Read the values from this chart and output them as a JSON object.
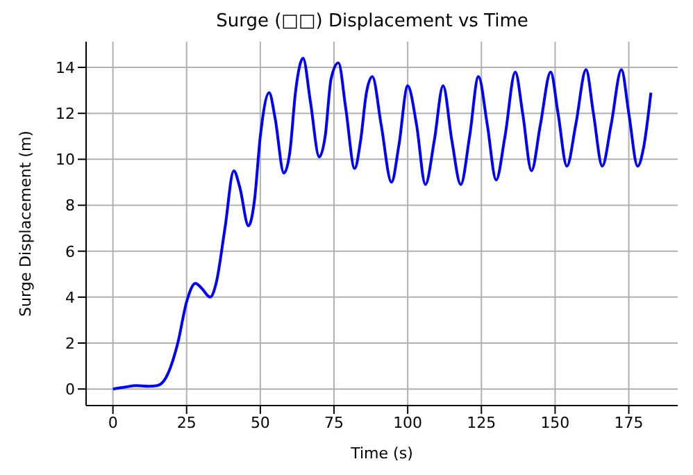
{
  "chart_data": {
    "type": "line",
    "title": "Surge (□□) Displacement vs Time",
    "xlabel": "Time (s)",
    "ylabel": "Surge Displacement (m)",
    "x": [
      0,
      4,
      8,
      12,
      15,
      18,
      22,
      25,
      28,
      30,
      33,
      35,
      38,
      41,
      43,
      46,
      48,
      50,
      53,
      55,
      58,
      60,
      62,
      64.5,
      67,
      70,
      72,
      74,
      76.5,
      79,
      82,
      84,
      86,
      88,
      91,
      94.5,
      97,
      100,
      103,
      106,
      109,
      112,
      115,
      118,
      121,
      124,
      127,
      130,
      133,
      136.5,
      139,
      142,
      145,
      148.5,
      151,
      154,
      157,
      160.5,
      163,
      166,
      169,
      172.5,
      175,
      178,
      180,
      182.5
    ],
    "series": [
      {
        "color": "#0000ff",
        "values": [
          0,
          0.08,
          0.15,
          0.12,
          0.15,
          0.5,
          2,
          3.8,
          4.6,
          4.4,
          4.0,
          4.6,
          7,
          9.5,
          8.8,
          7.1,
          8.2,
          11,
          12.9,
          11.8,
          9.4,
          10.3,
          13,
          14.4,
          12.5,
          10.1,
          11,
          13.5,
          14.2,
          12.2,
          9.6,
          10.8,
          12.9,
          13.6,
          11.5,
          9.0,
          10.6,
          13.2,
          11.5,
          8.9,
          10.8,
          13.2,
          10.8,
          8.9,
          11,
          13.6,
          11.5,
          9.1,
          11,
          13.8,
          12,
          9.5,
          11.5,
          13.8,
          12,
          9.7,
          11.5,
          13.9,
          12,
          9.7,
          11.5,
          13.9,
          12,
          9.7,
          10.5,
          12.9
        ]
      }
    ],
    "xlim": [
      -9.1,
      191.6
    ],
    "xticks": [
      0,
      25,
      50,
      75,
      100,
      125,
      150,
      175
    ],
    "ylim": [
      -0.72,
      15.12
    ],
    "yticks": [
      0,
      2,
      4,
      6,
      8,
      10,
      12,
      14
    ],
    "grid": true,
    "legend": false,
    "marker": "none",
    "line_style": "solid"
  }
}
